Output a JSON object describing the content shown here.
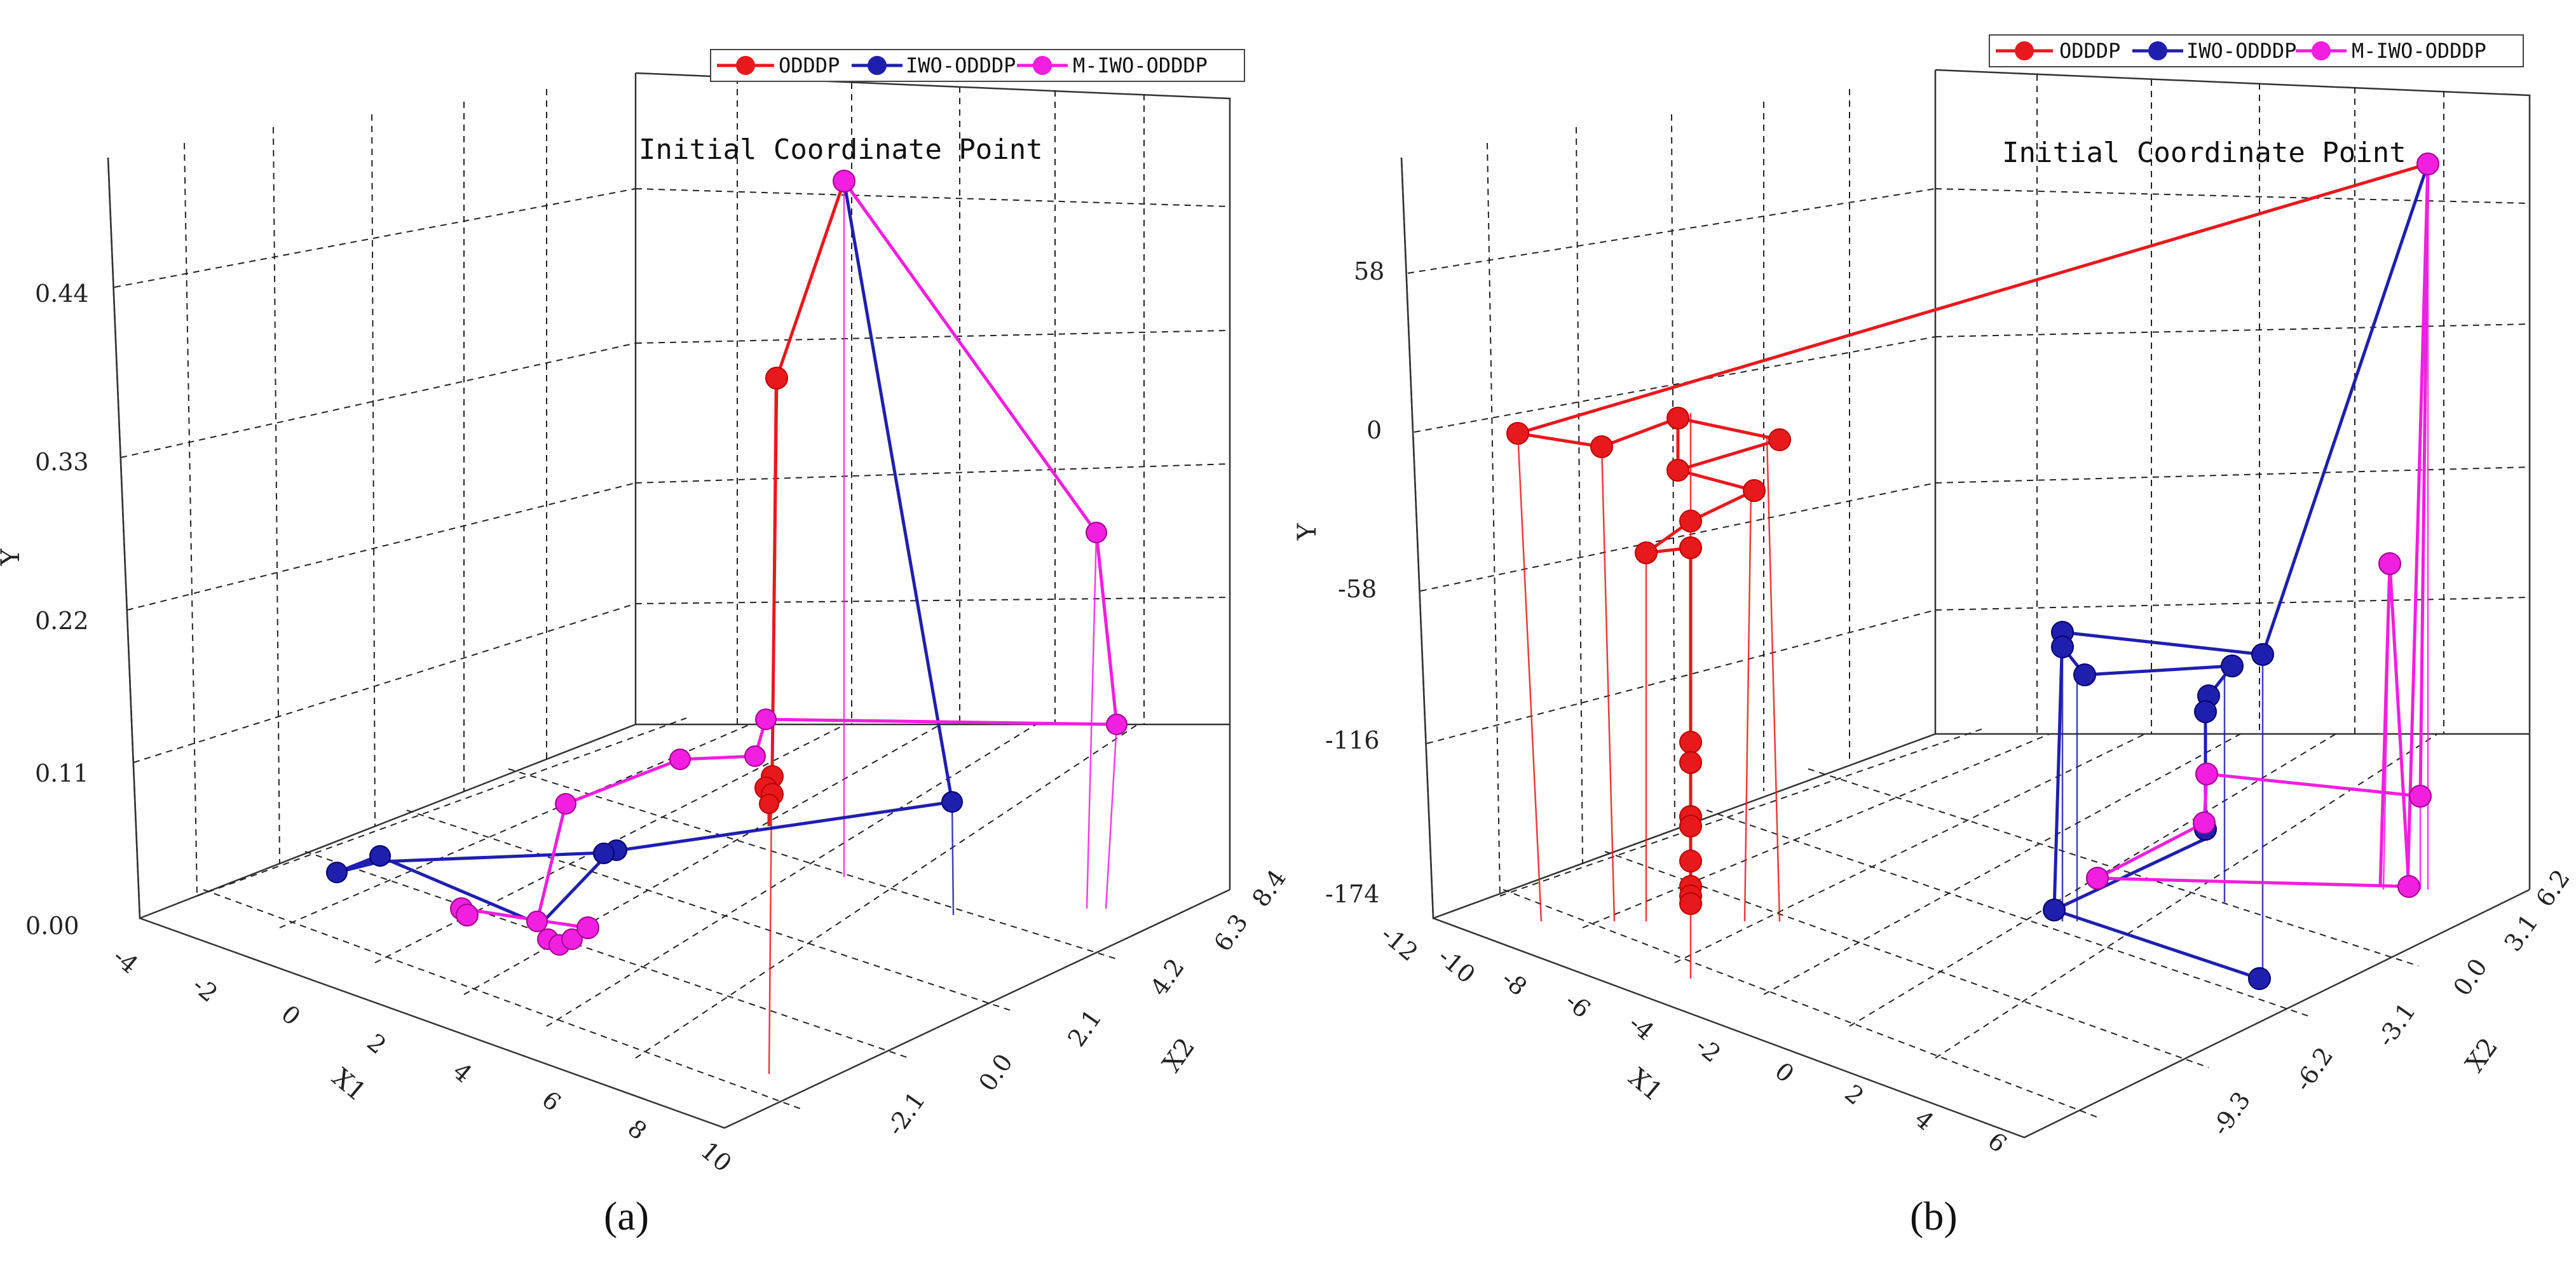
{
  "panels": [
    {
      "label": "(a)",
      "annotation": "Initial Coordinate Point",
      "legend": [
        "ODDDP",
        "IWO-ODDDP",
        "M-IWO-ODDDP"
      ],
      "axes": {
        "y_title": "Y",
        "x1_title": "X1",
        "x2_title": "X2",
        "y_ticks": [
          "0.00",
          "0.11",
          "0.22",
          "0.33",
          "0.44"
        ],
        "x1_ticks": [
          "-4",
          "-2",
          "0",
          "2",
          "4",
          "6",
          "8",
          "10"
        ],
        "x2_ticks": [
          "-2.1",
          "0.0",
          "2.1",
          "4.2",
          "6.3",
          "8.4"
        ]
      }
    },
    {
      "label": "(b)",
      "annotation": "Initial Coordinate Point",
      "legend": [
        "ODDDP",
        "IWO-ODDDP",
        "M-IWO-ODDDP"
      ],
      "axes": {
        "y_title": "Y",
        "x1_title": "X1",
        "x2_title": "X2",
        "y_ticks": [
          "-174",
          "-116",
          "-58",
          "0",
          "58"
        ],
        "x1_ticks": [
          "-12",
          "-10",
          "-8",
          "-6",
          "-4",
          "-2",
          "0",
          "2",
          "4",
          "6"
        ],
        "x2_ticks": [
          "-9.3",
          "-6.2",
          "-3.1",
          "0.0",
          "3.1",
          "6.2"
        ]
      }
    }
  ],
  "colors": {
    "odddp": "#e8191c",
    "iwo": "#1f1fae",
    "miwo": "#f21ee0"
  },
  "chart_data": [
    {
      "type": "scatter",
      "title": "",
      "xlabel": "X1",
      "zlabel": "X2",
      "ylabel": "Y",
      "x1lim": [
        -4,
        10
      ],
      "x2lim": [
        -2.1,
        8.4
      ],
      "ylim": [
        0,
        0.55
      ],
      "series": [
        {
          "name": "ODDDP",
          "color": "#e8191c",
          "points": [
            [
              3.2,
              -0.4,
              0.5
            ],
            [
              3.2,
              -0.4,
              0.4
            ],
            [
              3.2,
              -0.4,
              0.1
            ],
            [
              3.2,
              -0.4,
              0.08
            ],
            [
              3.2,
              -0.4,
              0.07
            ],
            [
              3.2,
              -0.4,
              0.06
            ],
            [
              3.2,
              -0.4,
              0.05
            ],
            [
              3.2,
              -0.4,
              0.04
            ]
          ]
        },
        {
          "name": "IWO-ODDDP",
          "color": "#1f1fae",
          "points": [
            [
              3.2,
              -0.4,
              0.5
            ],
            [
              8.2,
              1.4,
              0.02
            ],
            [
              6.3,
              4.9,
              0.02
            ],
            [
              6.3,
              5.2,
              0.02
            ],
            [
              3.0,
              7.0,
              0.02
            ],
            [
              2.6,
              8.0,
              0.02
            ]
          ]
        },
        {
          "name": "M-IWO-ODDDP",
          "color": "#f21ee0",
          "points": [
            [
              3.2,
              -0.4,
              0.5
            ],
            [
              7.8,
              2.3,
              0.25
            ],
            [
              8.2,
              1.4,
              0.1
            ],
            [
              3.2,
              -0.4,
              0.1
            ],
            [
              3.2,
              1.3,
              0.05
            ],
            [
              3.2,
              3.8,
              0.05
            ],
            [
              2.5,
              5.5,
              0.05
            ],
            [
              5.3,
              4.9,
              0.01
            ],
            [
              5.7,
              4.4,
              0.0
            ],
            [
              5.7,
              4.6,
              0.0
            ],
            [
              5.6,
              4.7,
              0.0
            ],
            [
              5.5,
              4.9,
              0.0
            ],
            [
              5.3,
              5.2,
              0.0
            ],
            [
              3.8,
              6.0,
              0.0
            ]
          ]
        }
      ]
    },
    {
      "type": "scatter",
      "title": "",
      "xlabel": "X1",
      "zlabel": "X2",
      "ylabel": "Y",
      "x1lim": [
        -12,
        6
      ],
      "x2lim": [
        -9.3,
        6.2
      ],
      "ylim": [
        -174,
        58
      ],
      "series": [
        {
          "name": "ODDDP",
          "color": "#e8191c",
          "points": [
            [
              6,
              -9.3,
              58
            ],
            [
              -10,
              4,
              0
            ],
            [
              -6.5,
              3,
              0
            ],
            [
              -4,
              2.5,
              10
            ],
            [
              -4,
              2.5,
              -20
            ],
            [
              -2,
              -2,
              -10
            ],
            [
              -2,
              0,
              0
            ],
            [
              -3.5,
              2,
              -40
            ],
            [
              -4,
              2.5,
              -60
            ],
            [
              -5,
              3.5,
              -50
            ],
            [
              -3.5,
              2,
              -130
            ],
            [
              -3.5,
              2,
              -150
            ],
            [
              -3.5,
              2,
              -170
            ],
            [
              -3.5,
              2,
              -175
            ],
            [
              -3.5,
              2,
              -190
            ],
            [
              -3.5,
              2,
              -200
            ],
            [
              -3.5,
              2,
              -210
            ]
          ]
        },
        {
          "name": "IWO-ODDDP",
          "color": "#1f1fae",
          "points": [
            [
              6,
              -9.3,
              58
            ],
            [
              5,
              -4,
              -85
            ],
            [
              2,
              -6.5,
              -60
            ],
            [
              0,
              -4,
              -60
            ],
            [
              0,
              -4,
              -55
            ],
            [
              1,
              -4.5,
              -70
            ],
            [
              4,
              -5,
              -75
            ],
            [
              4.5,
              -6,
              -90
            ],
            [
              4.5,
              -6,
              -120
            ],
            [
              5,
              -7,
              -150
            ],
            [
              6,
              -8.3,
              -170
            ],
            [
              4,
              -6,
              -155
            ],
            [
              2,
              -3.5,
              -140
            ],
            [
              5,
              -8,
              -200
            ]
          ]
        },
        {
          "name": "M-IWO-ODDDP",
          "color": "#f21ee0",
          "points": [
            [
              6,
              -9.3,
              58
            ],
            [
              6,
              -9,
              -70
            ],
            [
              6,
              -9,
              -175
            ],
            [
              5.5,
              -8,
              -130
            ],
            [
              3,
              -5,
              -140
            ],
            [
              3,
              -5,
              -150
            ],
            [
              4,
              -6,
              -170
            ],
            [
              6,
              -9,
              -180
            ],
            [
              3,
              -4,
              -160
            ]
          ]
        }
      ]
    }
  ]
}
